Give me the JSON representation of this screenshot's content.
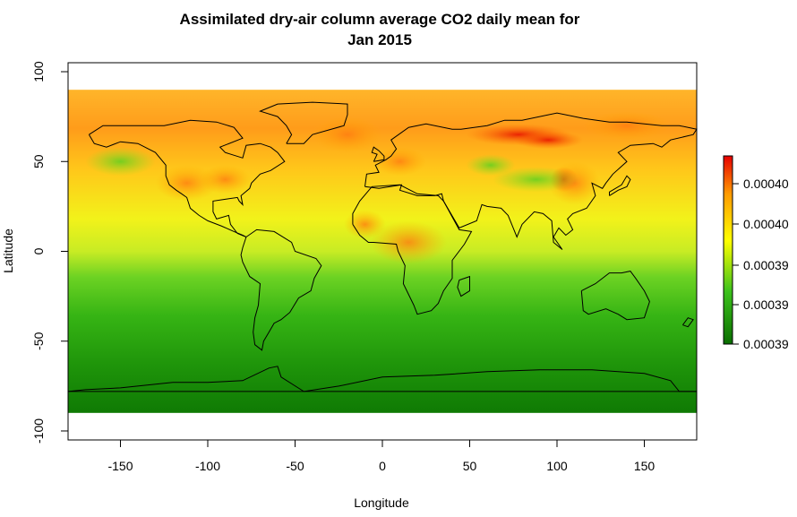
{
  "chart_data": {
    "type": "heatmap",
    "title_line1": "Assimilated dry-air column average CO2 daily mean for",
    "title_line2": "Jan 2015",
    "xlabel": "Longitude",
    "ylabel": "Latitude",
    "xlim": [
      -180,
      180
    ],
    "ylim": [
      -105,
      105
    ],
    "x_ticks": [
      -150,
      -100,
      -50,
      0,
      50,
      100,
      150
    ],
    "y_ticks": [
      100,
      50,
      0,
      -50,
      -100
    ],
    "x_tick_labels": [
      "-150",
      "-100",
      "-50",
      "0",
      "50",
      "100",
      "150"
    ],
    "y_tick_labels": [
      "100",
      "50",
      "0",
      "-50",
      "-100"
    ],
    "data_extent": {
      "lon": [
        -180,
        180
      ],
      "lat": [
        -90,
        90
      ]
    },
    "colorscale": [
      "#0a6e00",
      "#3cc21c",
      "#ffff00",
      "#ff9a00",
      "#e60000"
    ],
    "colorbar_tick_labels": [
      "0.00040",
      "0.00040",
      "0.00039",
      "0.00039",
      "0.00039"
    ],
    "colors": {
      "land_outline": "#000000",
      "frame": "#000000"
    }
  }
}
